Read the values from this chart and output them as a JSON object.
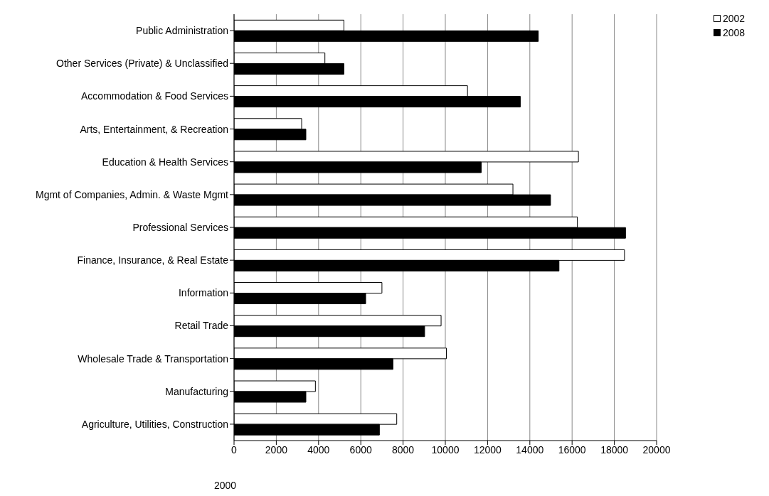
{
  "chart_data": {
    "type": "bar",
    "orientation": "horizontal",
    "xlabel": "2000",
    "categories": [
      "Public Administration",
      "Other Services (Private) & Unclassified",
      "Accommodation & Food Services",
      "Arts, Entertainment, & Recreation",
      "Education & Health Services",
      "Mgmt of Companies, Admin. & Waste Mgmt",
      "Professional Services",
      "Finance, Insurance, & Real Estate",
      "Information",
      "Retail Trade",
      "Wholesale Trade & Transportation",
      "Manufacturing",
      "Agriculture, Utilities, Construction"
    ],
    "series": [
      {
        "name": "2002",
        "color": "#ffffff",
        "values": [
          5200,
          4300,
          11050,
          3200,
          16300,
          13200,
          16250,
          18480,
          7000,
          9800,
          10050,
          3850,
          7700
        ]
      },
      {
        "name": "2008",
        "color": "#000000",
        "values": [
          14400,
          5200,
          13550,
          3400,
          11700,
          14980,
          18530,
          15380,
          6230,
          9020,
          7520,
          3400,
          6880
        ]
      }
    ],
    "xlim": [
      0,
      20000
    ],
    "xticks": [
      0,
      2000,
      4000,
      6000,
      8000,
      10000,
      12000,
      14000,
      16000,
      18000,
      20000
    ],
    "grid": "x",
    "legend": "top right"
  }
}
